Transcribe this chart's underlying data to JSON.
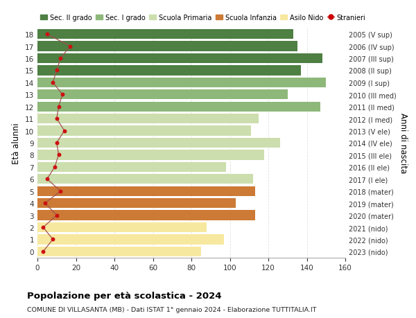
{
  "ages": [
    0,
    1,
    2,
    3,
    4,
    5,
    6,
    7,
    8,
    9,
    10,
    11,
    12,
    13,
    14,
    15,
    16,
    17,
    18
  ],
  "bar_values": [
    85,
    97,
    88,
    113,
    103,
    113,
    112,
    98,
    118,
    126,
    111,
    115,
    147,
    130,
    150,
    137,
    148,
    135,
    133
  ],
  "bar_colors": [
    "#f7e8a0",
    "#f7e8a0",
    "#f7e8a0",
    "#cc7a35",
    "#cc7a35",
    "#cc7a35",
    "#ccdead",
    "#ccdead",
    "#ccdead",
    "#ccdead",
    "#ccdead",
    "#ccdead",
    "#8db87a",
    "#8db87a",
    "#8db87a",
    "#4e7f43",
    "#4e7f43",
    "#4e7f43",
    "#4e7f43"
  ],
  "stranieri_values": [
    3,
    8,
    3,
    10,
    4,
    12,
    5,
    9,
    11,
    10,
    14,
    10,
    11,
    13,
    8,
    10,
    12,
    17,
    5
  ],
  "right_labels": [
    "2023 (nido)",
    "2022 (nido)",
    "2021 (nido)",
    "2020 (mater)",
    "2019 (mater)",
    "2018 (mater)",
    "2017 (I ele)",
    "2016 (II ele)",
    "2015 (III ele)",
    "2014 (IV ele)",
    "2013 (V ele)",
    "2012 (I med)",
    "2011 (II med)",
    "2010 (III med)",
    "2009 (I sup)",
    "2008 (II sup)",
    "2007 (III sup)",
    "2006 (IV sup)",
    "2005 (V sup)"
  ],
  "ylabel_left": "Età alunni",
  "ylabel_right": "Anni di nascita",
  "title": "Popolazione per età scolastica - 2024",
  "subtitle": "COMUNE DI VILLASANTA (MB) - Dati ISTAT 1° gennaio 2024 - Elaborazione TUTTITALIA.IT",
  "xlim": [
    0,
    160
  ],
  "xticks": [
    0,
    20,
    40,
    60,
    80,
    100,
    120,
    140,
    160
  ],
  "legend_labels": [
    "Sec. II grado",
    "Sec. I grado",
    "Scuola Primaria",
    "Scuola Infanzia",
    "Asilo Nido",
    "Stranieri"
  ],
  "legend_colors": [
    "#4e7f43",
    "#8db87a",
    "#ccdead",
    "#cc7a35",
    "#f7e8a0",
    "#cc0000"
  ],
  "line_color": "#a05050",
  "dot_color": "#cc1111",
  "background_color": "#ffffff",
  "grid_color": "#e0e0e0"
}
